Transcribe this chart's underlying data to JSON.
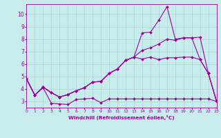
{
  "xlabel": "Windchill (Refroidissement éolien,°C)",
  "xlim": [
    0,
    23
  ],
  "ylim": [
    2.5,
    10.8
  ],
  "xticks": [
    0,
    1,
    2,
    3,
    4,
    5,
    6,
    7,
    8,
    9,
    10,
    11,
    12,
    13,
    14,
    15,
    16,
    17,
    18,
    19,
    20,
    21,
    22,
    23
  ],
  "yticks": [
    3,
    4,
    5,
    6,
    7,
    8,
    9,
    10
  ],
  "bg_color": "#c8ecec",
  "grid_color": "#a8d4d4",
  "line_color": "#990099",
  "line1_y": [
    4.8,
    3.5,
    4.1,
    2.85,
    2.8,
    2.75,
    3.15,
    3.2,
    3.25,
    2.9,
    3.2,
    3.2,
    3.2,
    3.2,
    3.2,
    3.2,
    3.2,
    3.2,
    3.2,
    3.2,
    3.2,
    3.2,
    3.2,
    3.0
  ],
  "line2_y": [
    4.8,
    3.5,
    4.15,
    3.7,
    3.35,
    3.55,
    3.85,
    4.1,
    4.55,
    4.6,
    5.25,
    5.6,
    6.3,
    6.55,
    6.4,
    6.55,
    6.35,
    6.5,
    6.5,
    6.55,
    6.55,
    6.35,
    5.25,
    3.0
  ],
  "line3_y": [
    4.8,
    3.5,
    4.15,
    3.7,
    3.35,
    3.55,
    3.85,
    4.1,
    4.55,
    4.6,
    5.25,
    5.6,
    6.3,
    6.55,
    7.1,
    7.3,
    7.6,
    8.0,
    7.9,
    8.1,
    8.1,
    8.15,
    5.25,
    3.0
  ],
  "line4_y": [
    4.8,
    3.5,
    4.15,
    3.7,
    3.35,
    3.55,
    3.85,
    4.1,
    4.55,
    4.6,
    5.25,
    5.6,
    6.3,
    6.55,
    8.5,
    8.55,
    9.5,
    10.6,
    8.0,
    8.1,
    8.1,
    6.35,
    5.25,
    3.0
  ],
  "x": [
    0,
    1,
    2,
    3,
    4,
    5,
    6,
    7,
    8,
    9,
    10,
    11,
    12,
    13,
    14,
    15,
    16,
    17,
    18,
    19,
    20,
    21,
    22,
    23
  ],
  "marker": "D",
  "markersize": 2.0,
  "linewidth": 0.8
}
